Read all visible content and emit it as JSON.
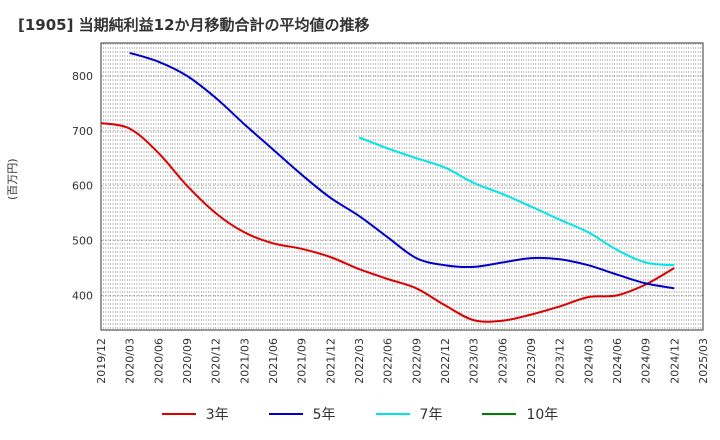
{
  "chart_data": {
    "type": "line",
    "title": "[1905]  当期純利益12か月移動合計の平均値の推移",
    "ylabel": "(百万円)",
    "xlabel": "",
    "ylim": [
      337,
      860
    ],
    "yticks": [
      400,
      500,
      600,
      700,
      800
    ],
    "xticks": [
      "2019/12",
      "2020/03",
      "2020/06",
      "2020/09",
      "2020/12",
      "2021/03",
      "2021/06",
      "2021/09",
      "2021/12",
      "2022/03",
      "2022/06",
      "2022/09",
      "2022/12",
      "2023/03",
      "2023/06",
      "2023/09",
      "2023/12",
      "2024/03",
      "2024/06",
      "2024/09",
      "2024/12",
      "2025/03"
    ],
    "grid": true,
    "legend_position": "bottom",
    "series": [
      {
        "name": "3年",
        "color": "#dd0000",
        "x": [
          "2019/12",
          "2020/03",
          "2020/06",
          "2020/09",
          "2020/12",
          "2021/03",
          "2021/06",
          "2021/09",
          "2021/12",
          "2022/03",
          "2022/06",
          "2022/09",
          "2022/12",
          "2023/03",
          "2023/06",
          "2023/09",
          "2023/12",
          "2024/03",
          "2024/06",
          "2024/09",
          "2024/12"
        ],
        "values": [
          714,
          704,
          660,
          600,
          550,
          515,
          495,
          485,
          470,
          448,
          430,
          413,
          382,
          355,
          354,
          365,
          380,
          397,
          400,
          420,
          450
        ]
      },
      {
        "name": "5年",
        "color": "#0000cc",
        "x": [
          "2020/03",
          "2020/06",
          "2020/09",
          "2020/12",
          "2021/03",
          "2021/06",
          "2021/09",
          "2021/12",
          "2022/03",
          "2022/06",
          "2022/09",
          "2022/12",
          "2023/03",
          "2023/06",
          "2023/09",
          "2023/12",
          "2024/03",
          "2024/06",
          "2024/09",
          "2024/12"
        ],
        "values": [
          842,
          826,
          800,
          760,
          712,
          666,
          620,
          578,
          545,
          506,
          468,
          455,
          452,
          460,
          468,
          466,
          455,
          438,
          422,
          413
        ]
      },
      {
        "name": "7年",
        "color": "#00e5e5",
        "x": [
          "2022/03",
          "2022/06",
          "2022/09",
          "2022/12",
          "2023/03",
          "2023/06",
          "2023/09",
          "2023/12",
          "2024/03",
          "2024/06",
          "2024/09",
          "2024/12"
        ],
        "values": [
          688,
          668,
          650,
          633,
          605,
          585,
          562,
          538,
          515,
          483,
          460,
          455
        ]
      },
      {
        "name": "10年",
        "color": "#008000",
        "x": [],
        "values": []
      }
    ]
  }
}
